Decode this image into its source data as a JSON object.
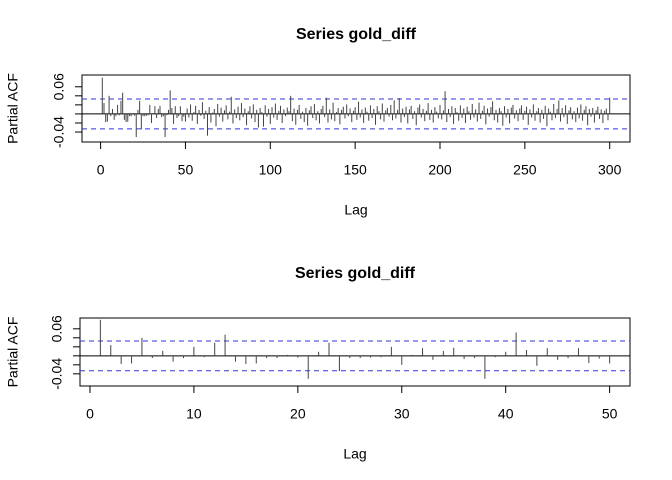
{
  "chart_data": [
    {
      "type": "pacf",
      "title": "Series  gold_diff",
      "xlabel": "Lag",
      "ylabel": "Partial ACF",
      "color": "#444444",
      "conf_color": "#3333dd",
      "conf_limits": [
        -0.033,
        0.033
      ],
      "xlim": [
        -10.96,
        311.96
      ],
      "xticks": [
        0,
        50,
        100,
        150,
        200,
        250,
        300
      ],
      "ylim": [
        -0.062,
        0.086
      ],
      "yticks": [
        -0.04,
        0.06
      ],
      "ytick_marks": [
        -0.04,
        -0.02,
        0,
        0.02,
        0.04,
        0.06
      ],
      "x": [
        1,
        2,
        3,
        4,
        5,
        6,
        7,
        8,
        9,
        10,
        11,
        12,
        13,
        14,
        15,
        16,
        17,
        18,
        19,
        20,
        21,
        22,
        23,
        24,
        25,
        26,
        27,
        28,
        29,
        30,
        31,
        32,
        33,
        34,
        35,
        36,
        37,
        38,
        39,
        40,
        41,
        42,
        43,
        44,
        45,
        46,
        47,
        48,
        49,
        50,
        51,
        52,
        53,
        54,
        55,
        56,
        57,
        58,
        59,
        60,
        61,
        62,
        63,
        64,
        65,
        66,
        67,
        68,
        69,
        70,
        71,
        72,
        73,
        74,
        75,
        76,
        77,
        78,
        79,
        80,
        81,
        82,
        83,
        84,
        85,
        86,
        87,
        88,
        89,
        90,
        91,
        92,
        93,
        94,
        95,
        96,
        97,
        98,
        99,
        100,
        101,
        102,
        103,
        104,
        105,
        106,
        107,
        108,
        109,
        110,
        111,
        112,
        113,
        114,
        115,
        116,
        117,
        118,
        119,
        120,
        121,
        122,
        123,
        124,
        125,
        126,
        127,
        128,
        129,
        130,
        131,
        132,
        133,
        134,
        135,
        136,
        137,
        138,
        139,
        140,
        141,
        142,
        143,
        144,
        145,
        146,
        147,
        148,
        149,
        150,
        151,
        152,
        153,
        154,
        155,
        156,
        157,
        158,
        159,
        160,
        161,
        162,
        163,
        164,
        165,
        166,
        167,
        168,
        169,
        170,
        171,
        172,
        173,
        174,
        175,
        176,
        177,
        178,
        179,
        180,
        181,
        182,
        183,
        184,
        185,
        186,
        187,
        188,
        189,
        190,
        191,
        192,
        193,
        194,
        195,
        196,
        197,
        198,
        199,
        200,
        201,
        202,
        203,
        204,
        205,
        206,
        207,
        208,
        209,
        210,
        211,
        212,
        213,
        214,
        215,
        216,
        217,
        218,
        219,
        220,
        221,
        222,
        223,
        224,
        225,
        226,
        227,
        228,
        229,
        230,
        231,
        232,
        233,
        234,
        235,
        236,
        237,
        238,
        239,
        240,
        241,
        242,
        243,
        244,
        245,
        246,
        247,
        248,
        249,
        250,
        251,
        252,
        253,
        254,
        255,
        256,
        257,
        258,
        259,
        260,
        261,
        262,
        263,
        264,
        265,
        266,
        267,
        268,
        269,
        270,
        271,
        272,
        273,
        274,
        275,
        276,
        277,
        278,
        279,
        280,
        281,
        282,
        283,
        284,
        285,
        286,
        287,
        288,
        289,
        290,
        291,
        292,
        293,
        294,
        295,
        296,
        297,
        298,
        299,
        300
      ],
      "values": [
        0.08,
        0.024,
        -0.018,
        -0.017,
        0.04,
        -0.005,
        0.011,
        -0.013,
        -0.005,
        0.02,
        -0.003,
        0.029,
        0.047,
        -0.013,
        -0.018,
        -0.017,
        -0.005,
        -0.005,
        0.002,
        -0.004,
        -0.051,
        0.009,
        0.029,
        -0.034,
        -0.005,
        -0.005,
        -0.004,
        -0.003,
        0.02,
        -0.02,
        0.002,
        0.017,
        -0.009,
        0.011,
        0.018,
        -0.007,
        -0.005,
        -0.051,
        -0.003,
        0.009,
        0.052,
        0.013,
        -0.022,
        0.017,
        -0.009,
        -0.005,
        0.017,
        -0.016,
        -0.006,
        -0.017,
        0.012,
        -0.008,
        0.021,
        -0.015,
        0.004,
        0.018,
        -0.022,
        0.009,
        -0.004,
        0.026,
        -0.011,
        0.007,
        -0.048,
        0.015,
        -0.019,
        0.003,
        0.011,
        -0.027,
        0.022,
        -0.006,
        0.014,
        -0.017,
        0.008,
        0.019,
        -0.012,
        0.005,
        0.038,
        -0.021,
        0.01,
        -0.009,
        0.016,
        -0.014,
        0.024,
        -0.007,
        0.012,
        -0.025,
        0.006,
        0.017,
        -0.01,
        0.021,
        -0.018,
        0.009,
        -0.03,
        0.013,
        0.004,
        -0.028,
        0.019,
        -0.006,
        0.011,
        -0.022,
        0.015,
        -0.008,
        0.023,
        -0.013,
        0.007,
        0.018,
        -0.02,
        0.01,
        -0.005,
        0.014,
        0.006,
        0.04,
        -0.016,
        0.012,
        -0.024,
        0.009,
        0.02,
        -0.011,
        0.005,
        -0.018,
        0.013,
        -0.026,
        0.008,
        0.017,
        -0.009,
        0.022,
        -0.014,
        0.006,
        -0.021,
        0.011,
        0.018,
        -0.007,
        0.036,
        -0.019,
        0.01,
        -0.012,
        0.025,
        -0.016,
        0.004,
        0.013,
        -0.023,
        0.009,
        0.016,
        -0.01,
        0.021,
        -0.005,
        0.012,
        -0.018,
        0.007,
        0.015,
        -0.013,
        0.027,
        -0.008,
        0.01,
        -0.02,
        0.014,
        0.005,
        -0.015,
        0.019,
        -0.009,
        0.011,
        -0.024,
        0.017,
        0.006,
        -0.012,
        0.023,
        -0.017,
        0.008,
        0.013,
        -0.006,
        0.02,
        -0.014,
        0.03,
        -0.01,
        0.009,
        0.035,
        -0.019,
        0.012,
        -0.007,
        0.016,
        -0.021,
        0.01,
        0.018,
        -0.011,
        0.006,
        -0.025,
        0.014,
        0.021,
        -0.008,
        0.011,
        -0.016,
        0.007,
        0.024,
        -0.013,
        0.009,
        -0.019,
        0.015,
        0.005,
        -0.01,
        0.02,
        -0.012,
        0.008,
        0.05,
        -0.018,
        0.011,
        -0.007,
        0.017,
        -0.022,
        0.013,
        0.004,
        -0.015,
        0.019,
        -0.009,
        0.012,
        -0.02,
        0.016,
        0.006,
        -0.013,
        0.022,
        -0.008,
        0.01,
        -0.017,
        0.025,
        -0.011,
        0.007,
        0.018,
        -0.023,
        0.012,
        -0.006,
        0.015,
        0.028,
        -0.014,
        0.009,
        -0.019,
        0.013,
        0.006,
        -0.026,
        0.017,
        -0.008,
        0.011,
        -0.021,
        0.014,
        0.02,
        -0.01,
        0.008,
        -0.016,
        0.012,
        0.019,
        -0.013,
        0.007,
        0.016,
        -0.024,
        0.01,
        -0.008,
        0.021,
        -0.015,
        0.006,
        0.013,
        -0.019,
        0.009,
        -0.011,
        0.018,
        -0.027,
        0.012,
        0.005,
        -0.014,
        0.022,
        -0.009,
        0.011,
        0.03,
        -0.017,
        0.013,
        -0.007,
        0.019,
        -0.022,
        0.008,
        0.015,
        -0.012,
        0.006,
        -0.018,
        0.014,
        -0.01,
        0.021,
        -0.015,
        0.009,
        0.017,
        -0.025,
        0.011,
        -0.006,
        0.013,
        -0.019,
        0.008,
        0.016,
        -0.011,
        0.01,
        -0.02,
        0.007,
        0.012,
        -0.014,
        0.036
      ]
    },
    {
      "type": "pacf",
      "title": "Series  gold_diff",
      "xlabel": "Lag",
      "ylabel": "Partial ACF",
      "color": "#444444",
      "conf_color": "#3333dd",
      "conf_limits": [
        -0.033,
        0.033
      ],
      "xlim": [
        -0.96,
        51.96
      ],
      "xticks": [
        0,
        10,
        20,
        30,
        40,
        50
      ],
      "ylim": [
        -0.067,
        0.084
      ],
      "yticks": [
        -0.04,
        0.06
      ],
      "ytick_marks": [
        -0.04,
        -0.02,
        0,
        0.02,
        0.04,
        0.06
      ],
      "x": [
        1,
        2,
        3,
        4,
        5,
        6,
        7,
        8,
        9,
        10,
        11,
        12,
        13,
        14,
        15,
        16,
        17,
        18,
        19,
        20,
        21,
        22,
        23,
        24,
        25,
        26,
        27,
        28,
        29,
        30,
        31,
        32,
        33,
        34,
        35,
        36,
        37,
        38,
        39,
        40,
        41,
        42,
        43,
        44,
        45,
        46,
        47,
        48,
        49,
        50
      ],
      "values": [
        0.08,
        0.024,
        -0.018,
        -0.017,
        0.04,
        -0.005,
        0.011,
        -0.013,
        -0.005,
        0.02,
        -0.003,
        0.029,
        0.047,
        -0.013,
        -0.018,
        -0.017,
        -0.005,
        -0.005,
        0.002,
        -0.004,
        -0.051,
        0.009,
        0.029,
        -0.034,
        -0.005,
        -0.005,
        -0.004,
        -0.003,
        0.02,
        -0.02,
        0.002,
        0.017,
        -0.009,
        0.011,
        0.018,
        -0.007,
        -0.005,
        -0.051,
        -0.003,
        0.009,
        0.052,
        0.013,
        -0.022,
        0.017,
        -0.009,
        -0.005,
        0.017,
        -0.016,
        -0.006,
        -0.017
      ]
    }
  ]
}
